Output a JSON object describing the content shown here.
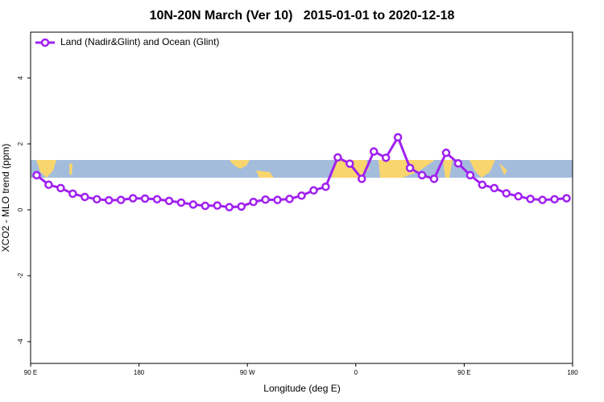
{
  "chart_data": {
    "type": "line",
    "title": "10N-20N March (Ver 10)   2015-01-01 to 2020-12-18",
    "x_label": "Longitude (deg E)",
    "y_label": "XCO2 - MLO trend (ppm)",
    "x": [
      95,
      105,
      115,
      125,
      135,
      145,
      155,
      165,
      175,
      185,
      195,
      205,
      215,
      225,
      235,
      245,
      255,
      265,
      275,
      285,
      295,
      305,
      315,
      325,
      335,
      345,
      355,
      365,
      375,
      385,
      395,
      405,
      415,
      425,
      435,
      445,
      455,
      465,
      475,
      485,
      495,
      505,
      515,
      525,
      535
    ],
    "series": [
      {
        "name": "Land (Nadir&Glint) and Ocean (Glint)",
        "color": "#a020f0",
        "values": [
          1.05,
          0.76,
          0.66,
          0.49,
          0.39,
          0.32,
          0.29,
          0.3,
          0.35,
          0.34,
          0.32,
          0.27,
          0.22,
          0.16,
          0.12,
          0.13,
          0.08,
          0.1,
          0.24,
          0.31,
          0.3,
          0.33,
          0.43,
          0.59,
          0.7,
          1.59,
          1.4,
          0.94,
          1.77,
          1.58,
          2.2,
          1.27,
          1.05,
          0.94,
          1.73,
          1.41,
          1.05,
          0.76,
          0.66,
          0.5,
          0.41,
          0.33,
          0.3,
          0.32,
          0.35
        ]
      }
    ],
    "xlim": [
      90,
      540
    ],
    "xticks": [
      {
        "value": 90,
        "label": "90 E"
      },
      {
        "value": 180,
        "label": "180"
      },
      {
        "value": 270,
        "label": "90 W"
      },
      {
        "value": 360,
        "label": "0"
      },
      {
        "value": 450,
        "label": "90 E"
      },
      {
        "value": 540,
        "label": "180"
      }
    ],
    "ylim": [
      -4.66,
      5.39
    ],
    "yticks": [
      -4,
      -2,
      0,
      2,
      4
    ],
    "grid": false,
    "legend": "top-left"
  }
}
